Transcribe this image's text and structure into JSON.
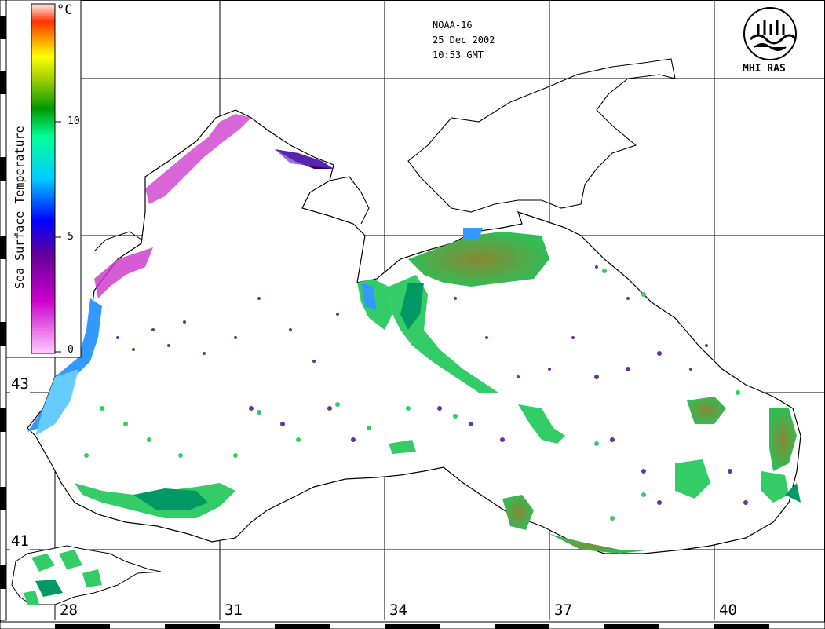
{
  "satellite": "NOAA-16",
  "date": "25 Dec 2002",
  "time": "10:53 GMT",
  "logo": {
    "text": "MHI RAS",
    "icon": "mhi-ras-logo-icon"
  },
  "legend": {
    "title": "Sea Surface Temperature",
    "unit": "°C",
    "ticks": [
      "10",
      "5",
      "0"
    ],
    "colors": [
      "#ffffff",
      "#ff99cc",
      "#cc00cc",
      "#660099",
      "#0000ff",
      "#00ccff",
      "#00ff99",
      "#009900",
      "#99cc00",
      "#ffff00",
      "#ff9900",
      "#ff3300",
      "#ffcccc"
    ]
  },
  "grid": {
    "longitudes": [
      "28",
      "31",
      "34",
      "37",
      "40"
    ],
    "latitudes": [
      "43",
      "41"
    ]
  }
}
